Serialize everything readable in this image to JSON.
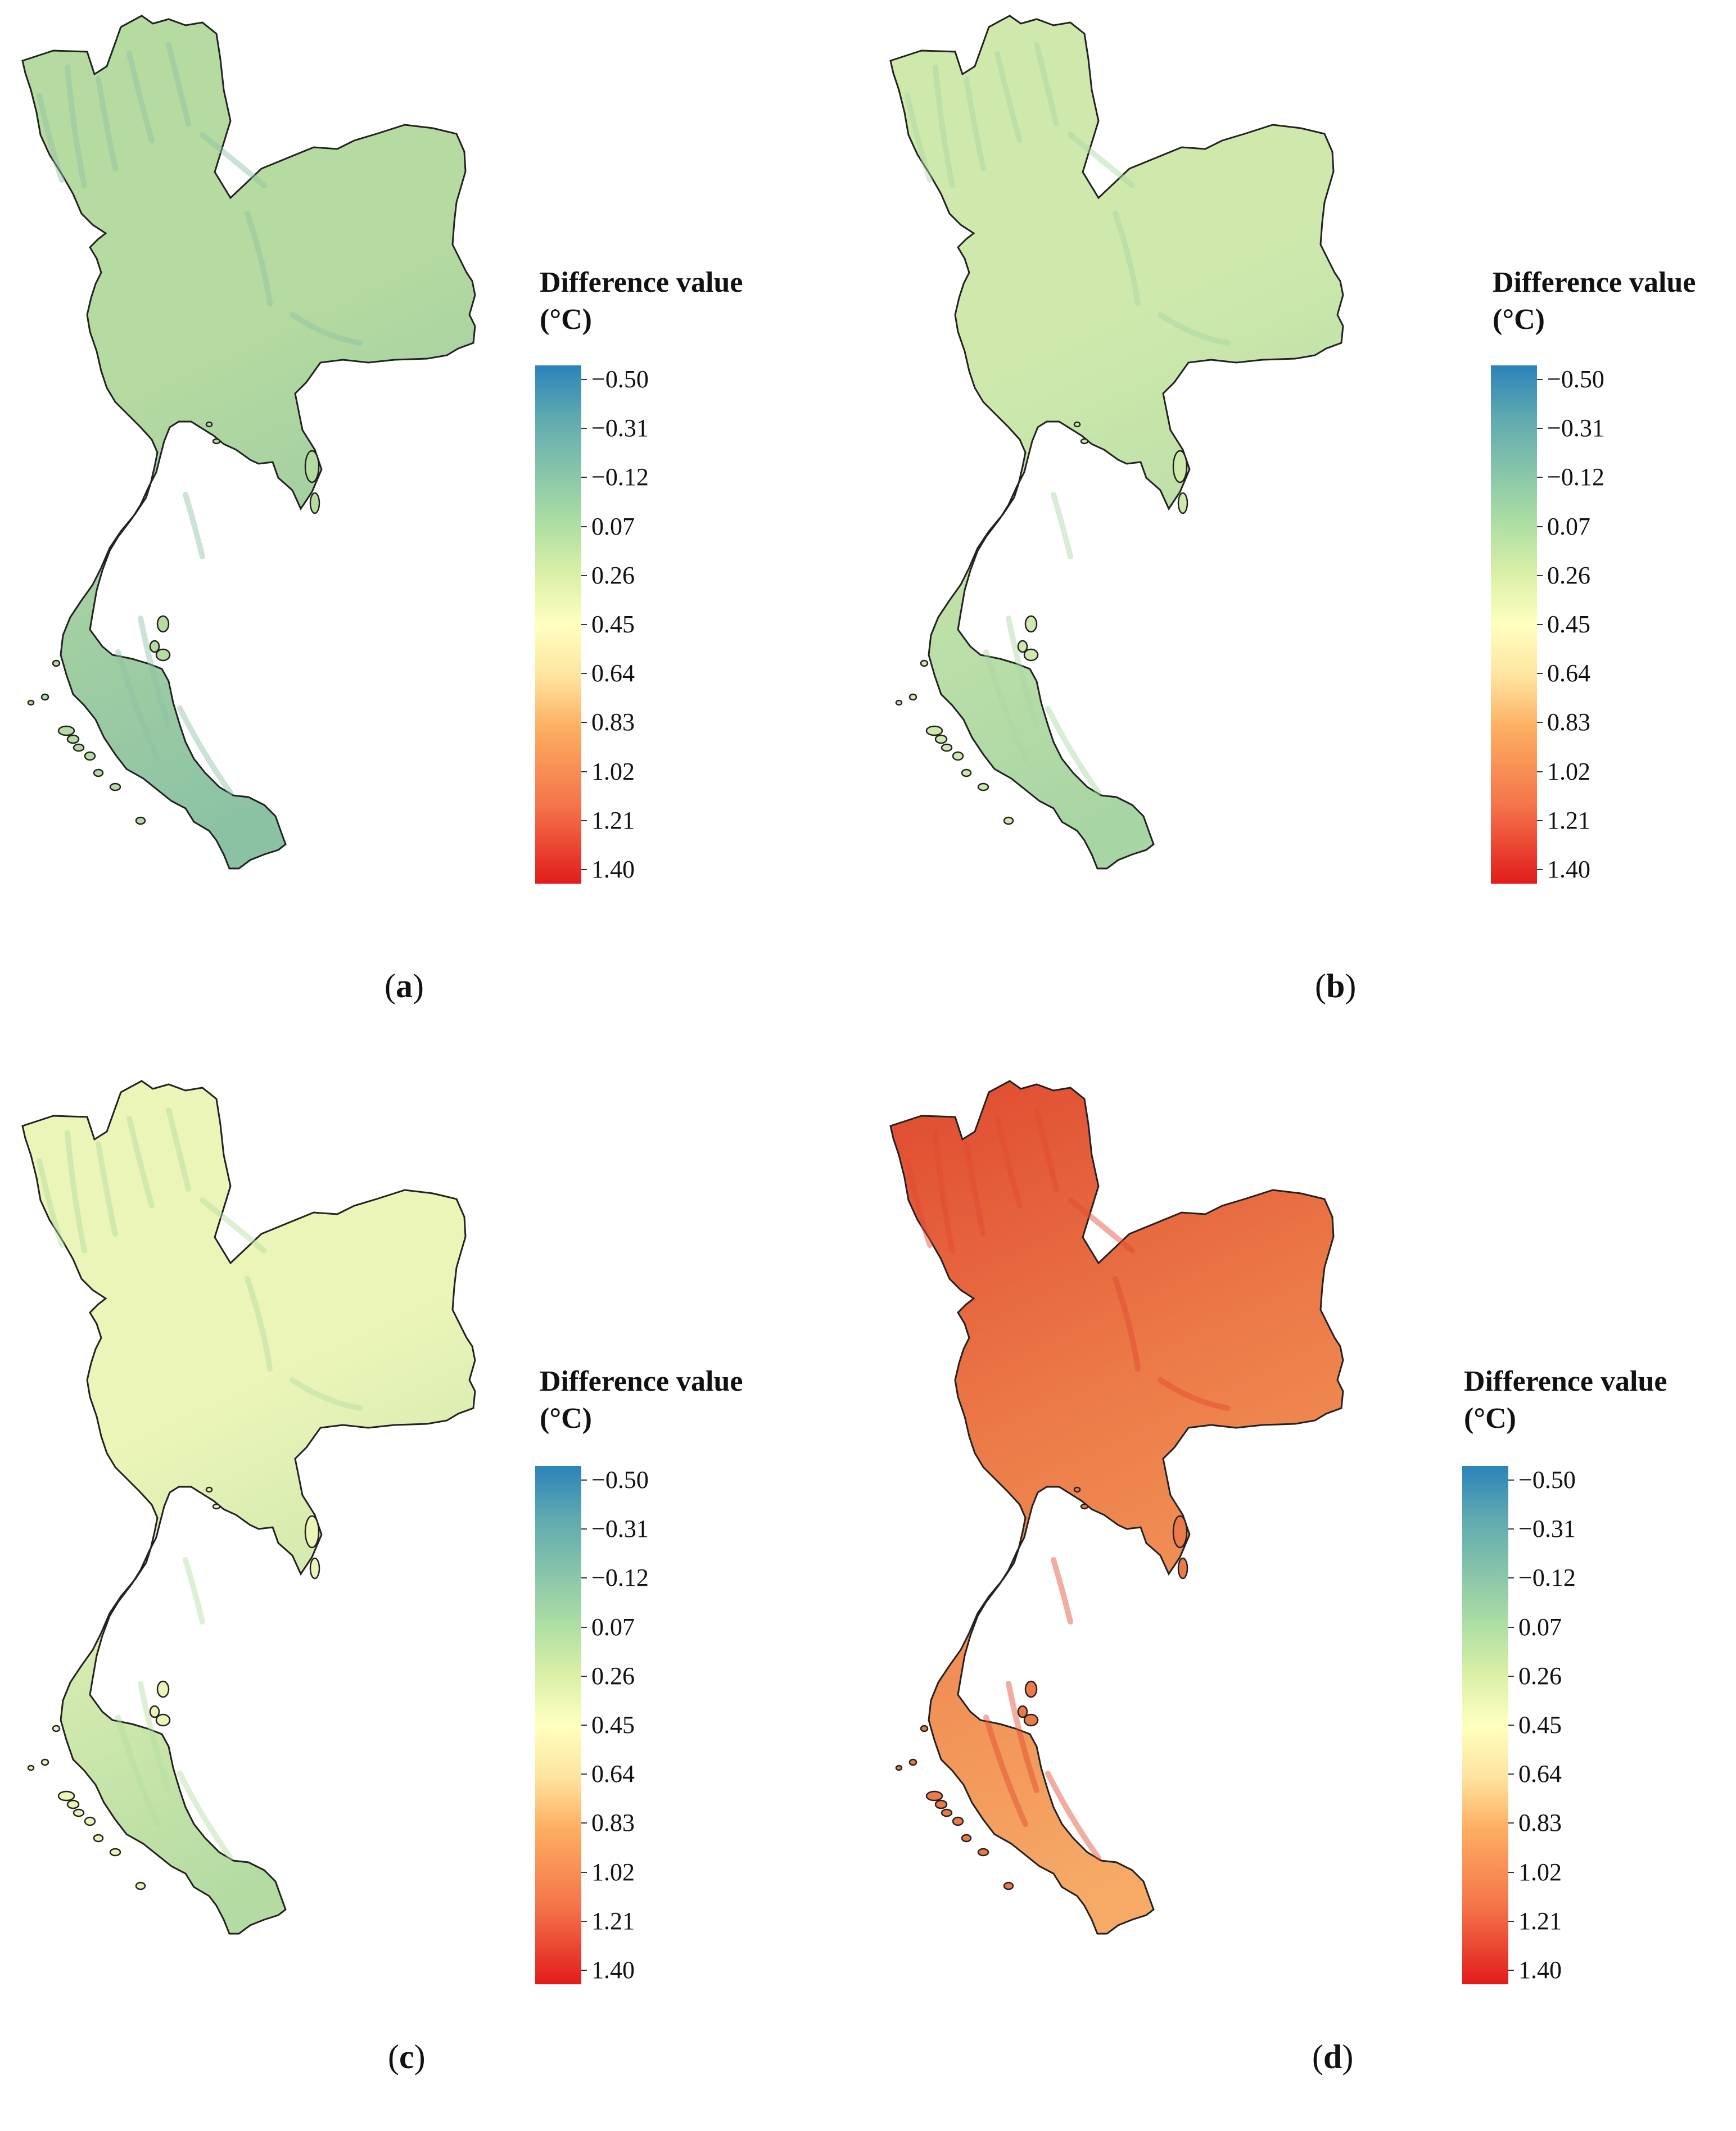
{
  "legend": {
    "title_line1": "Difference value",
    "title_line2": "(°C)",
    "ticks": [
      "−0.50",
      "−0.31",
      "−0.12",
      "0.07",
      "0.26",
      "0.45",
      "0.64",
      "0.83",
      "1.02",
      "1.21",
      "1.40"
    ]
  },
  "panels": [
    {
      "label": "a",
      "fill_level": 0.18,
      "colors": {
        "main": "#b6dba0",
        "dark": "#8cc2a4",
        "light": "#cfe8a8"
      }
    },
    {
      "label": "b",
      "fill_level": 0.24,
      "colors": {
        "main": "#cfe9ac",
        "dark": "#a8d5a4",
        "light": "#e2f1b2"
      }
    },
    {
      "label": "c",
      "fill_level": 0.3,
      "colors": {
        "main": "#ecf5b8",
        "dark": "#b4dca2",
        "light": "#f8f9c0"
      }
    },
    {
      "label": "d",
      "fill_level": 0.8,
      "colors": {
        "main": "#ec7a48",
        "dark": "#df4a30",
        "light": "#f6aa66"
      }
    }
  ]
}
